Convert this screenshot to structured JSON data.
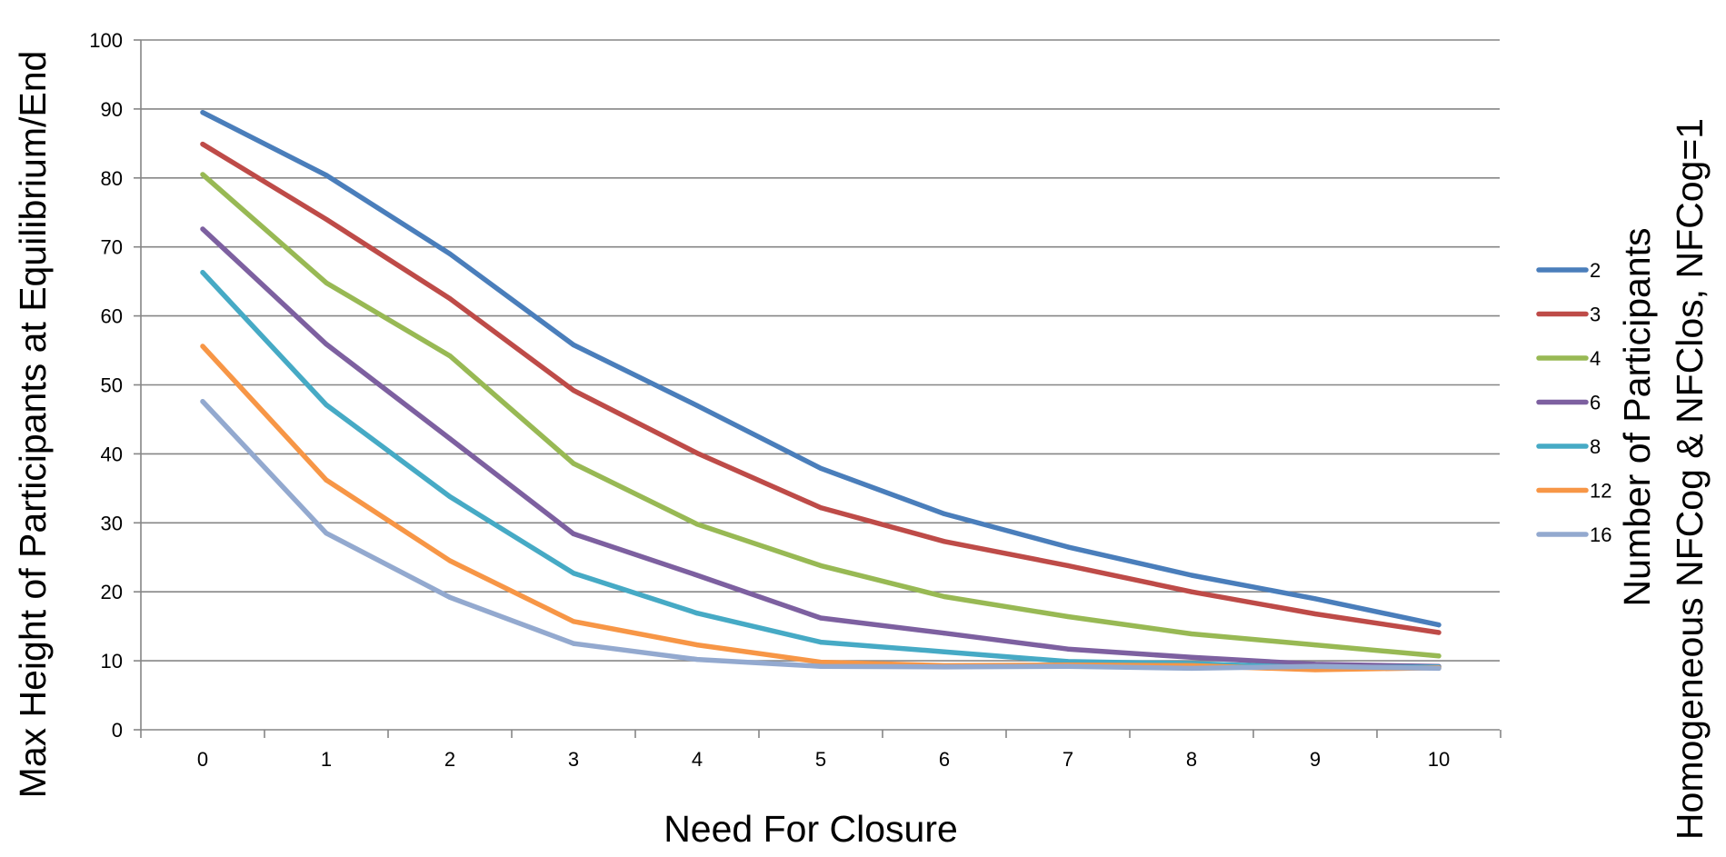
{
  "chart_data": {
    "type": "line",
    "title": "",
    "xlabel": "Need For Closure",
    "ylabel": "Max Height of Participants at Equilibrium/End",
    "legend_title_lines": [
      "Number of Participants",
      "Homogeneous NFCog & NFClos, NFCog=1"
    ],
    "legend_position": "right",
    "x": [
      0,
      1,
      2,
      3,
      4,
      5,
      6,
      7,
      8,
      9,
      10
    ],
    "x_tick_labels": [
      "0",
      "1",
      "2",
      "3",
      "4",
      "5",
      "6",
      "7",
      "8",
      "9",
      "10"
    ],
    "ylim": [
      0,
      100
    ],
    "y_ticks": [
      0,
      10,
      20,
      30,
      40,
      50,
      60,
      70,
      80,
      90,
      100
    ],
    "grid": "horizontal",
    "series": [
      {
        "name": "2",
        "color": "#4A7EBB",
        "values": [
          89.5,
          80.4,
          69.0,
          55.8,
          47.0,
          37.9,
          31.3,
          26.5,
          22.4,
          19.0,
          15.2
        ]
      },
      {
        "name": "3",
        "color": "#BE4B48",
        "values": [
          84.9,
          74.0,
          62.5,
          49.2,
          40.1,
          32.2,
          27.3,
          23.8,
          20.0,
          16.8,
          14.1
        ]
      },
      {
        "name": "4",
        "color": "#98B954",
        "values": [
          80.5,
          64.8,
          54.2,
          38.6,
          29.8,
          23.8,
          19.3,
          16.4,
          13.9,
          12.3,
          10.7
        ]
      },
      {
        "name": "6",
        "color": "#7D60A0",
        "values": [
          72.6,
          55.9,
          42.2,
          28.4,
          22.4,
          16.2,
          14.0,
          11.7,
          10.5,
          9.5,
          9.2
        ]
      },
      {
        "name": "8",
        "color": "#46AAC5",
        "values": [
          66.3,
          47.1,
          33.8,
          22.7,
          16.9,
          12.7,
          11.3,
          9.9,
          9.6,
          9.0,
          9.1
        ]
      },
      {
        "name": "12",
        "color": "#F79646",
        "values": [
          55.6,
          36.2,
          24.5,
          15.7,
          12.3,
          9.8,
          9.3,
          9.4,
          9.3,
          8.7,
          9.0
        ]
      },
      {
        "name": "16",
        "color": "#93A9CF",
        "values": [
          47.6,
          28.5,
          19.2,
          12.5,
          10.2,
          9.2,
          9.1,
          9.2,
          8.9,
          9.2,
          8.9
        ]
      }
    ]
  }
}
